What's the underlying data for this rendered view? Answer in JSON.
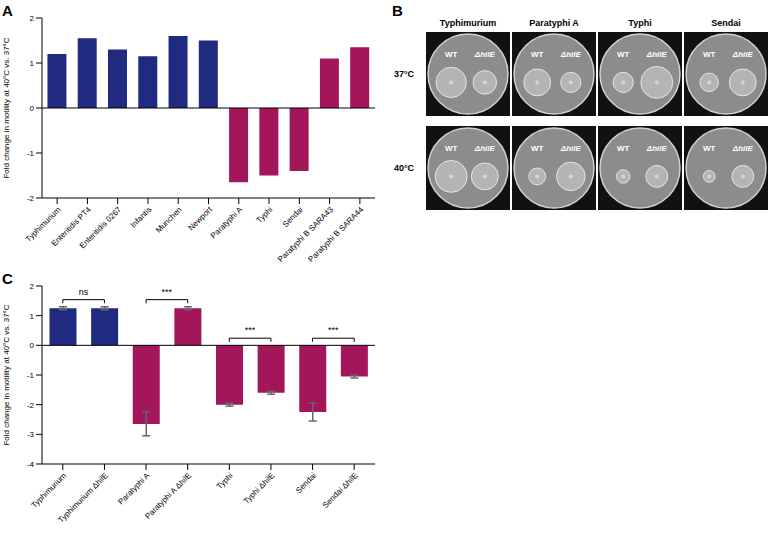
{
  "chart_data": [
    {
      "panel_label": "A",
      "type": "bar",
      "y_label": "Fold change in motility at 40°C vs. 37°C",
      "categories": [
        "Typhimurium",
        "Enteritidis PT4",
        "Enteritidis 0267",
        "Infantis",
        "Munchen",
        "Newport",
        "Paratyphi A",
        "Typhi",
        "Sendai",
        "Paratyphi B SARA43",
        "Paratyphi B SARA44"
      ],
      "values": [
        1.2,
        1.55,
        1.3,
        1.15,
        1.6,
        1.5,
        -1.65,
        -1.5,
        -1.4,
        1.1,
        1.35
      ],
      "colors": [
        "#1f2a80",
        "#1f2a80",
        "#1f2a80",
        "#1f2a80",
        "#1f2a80",
        "#1f2a80",
        "#a3165a",
        "#a3165a",
        "#a3165a",
        "#a3165a",
        "#a3165a"
      ],
      "ylim": [
        -2,
        2
      ],
      "yticks": [
        -2,
        -1,
        0,
        1,
        2
      ],
      "grid": false
    },
    {
      "panel_label": "C",
      "type": "bar",
      "y_label": "Fold change in motility at 40°C vs. 37°C",
      "categories": [
        "Typhimurium",
        "Typhimurium ΔhilE",
        "Paratyphi A",
        "Paratyphi A ΔhilE",
        "Typhi",
        "Typhi ΔhilE",
        "Sendai",
        "Sendai ΔhilE"
      ],
      "values": [
        1.25,
        1.25,
        -2.65,
        1.25,
        -2.0,
        -1.6,
        -2.25,
        -1.05
      ],
      "errors": [
        0.05,
        0.05,
        0.4,
        0.05,
        0.05,
        0.05,
        0.3,
        0.05
      ],
      "colors": [
        "#1f2a80",
        "#1f2a80",
        "#a3165a",
        "#a3165a",
        "#a3165a",
        "#a3165a",
        "#a3165a",
        "#a3165a"
      ],
      "ylim": [
        -4,
        2
      ],
      "yticks": [
        -4,
        -3,
        -2,
        -1,
        0,
        1,
        2
      ],
      "grid": false,
      "significance": [
        {
          "from": "Typhimurium",
          "to": "Typhimurium ΔhilE",
          "label": "ns"
        },
        {
          "from": "Paratyphi A",
          "to": "Paratyphi A ΔhilE",
          "label": "***"
        },
        {
          "from": "Typhi",
          "to": "Typhi ΔhilE",
          "label": "***"
        },
        {
          "from": "Sendai",
          "to": "Sendai ΔhilE",
          "label": "***"
        }
      ]
    }
  ],
  "image_panel": {
    "panel_label": "B",
    "columns": [
      "Typhimurium",
      "Paratyphi A",
      "Typhi",
      "Sendai"
    ],
    "rows": [
      "37°C",
      "40°C"
    ],
    "strains": [
      "WT",
      "ΔhilE"
    ],
    "swarm_size": [
      [
        [
          0.9,
          0.7
        ],
        [
          0.8,
          0.6
        ],
        [
          0.6,
          0.95
        ],
        [
          0.55,
          0.8
        ]
      ],
      [
        [
          0.95,
          0.8
        ],
        [
          0.5,
          0.85
        ],
        [
          0.4,
          0.65
        ],
        [
          0.35,
          0.65
        ]
      ]
    ]
  }
}
